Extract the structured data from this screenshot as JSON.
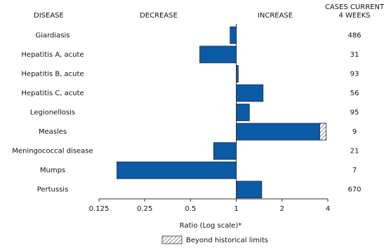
{
  "chart_data": {
    "type": "bar",
    "orientation": "horizontal",
    "xscale": "log",
    "column_headers": {
      "disease": "DISEASE",
      "decrease": "DECREASE",
      "increase": "INCREASE",
      "cases": [
        "CASES CURRENT",
        "4 WEEKS"
      ]
    },
    "categories": [
      "Giardiasis",
      "Hepatitis A, acute",
      "Hepatitis B, acute",
      "Hepatitis C, acute",
      "Legionellosis",
      "Measles",
      "Meningococcal disease",
      "Mumps",
      "Pertussis"
    ],
    "values": [
      0.91,
      0.575,
      1.03,
      1.5,
      1.22,
      3.9,
      0.71,
      0.164,
      1.47
    ],
    "limits": [
      null,
      null,
      null,
      null,
      null,
      3.54,
      null,
      null,
      null
    ],
    "cases": [
      486,
      31,
      93,
      56,
      95,
      9,
      21,
      7,
      670
    ],
    "color": "#0b5aa6",
    "xlim": [
      0.125,
      4
    ],
    "xticks": [
      0.125,
      0.25,
      0.5,
      1,
      2,
      4
    ],
    "xlabel": "Ratio (Log scale)*",
    "legend": "Beyond historical limits"
  }
}
